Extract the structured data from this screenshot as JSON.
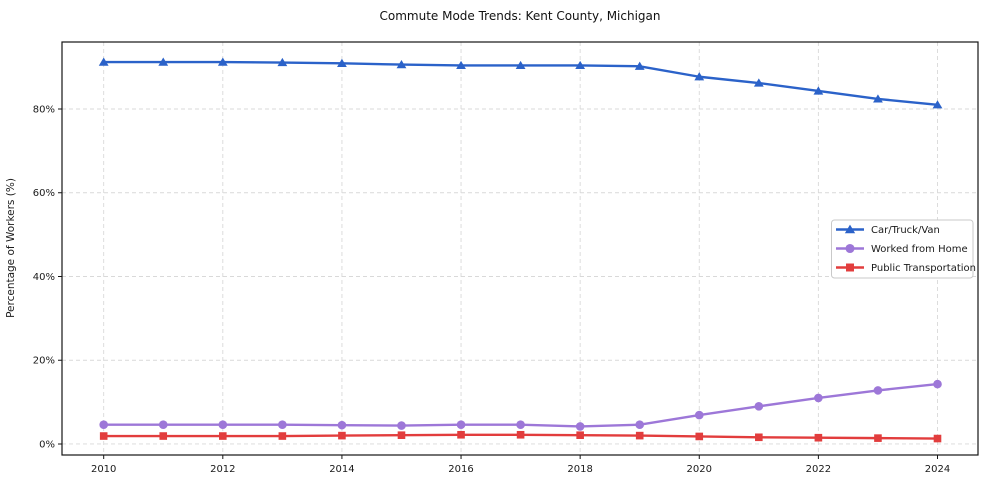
{
  "title": "Commute Mode Trends: Kent County, Michigan",
  "chart_data": {
    "type": "line",
    "title": "Commute Mode Trends: Kent County, Michigan",
    "xlabel": "",
    "ylabel": "Percentage of Workers (%)",
    "x": [
      2010,
      2011,
      2012,
      2013,
      2014,
      2015,
      2016,
      2017,
      2018,
      2019,
      2020,
      2021,
      2022,
      2023,
      2024
    ],
    "series": [
      {
        "name": "Car/Truck/Van",
        "marker": "triangle",
        "color": "#2b62c9",
        "values": [
          91.2,
          91.2,
          91.2,
          91.1,
          90.9,
          90.6,
          90.4,
          90.4,
          90.4,
          90.2,
          87.7,
          86.2,
          84.3,
          82.4,
          81.0
        ]
      },
      {
        "name": "Worked from Home",
        "marker": "circle",
        "color": "#9d77d8",
        "values": [
          4.6,
          4.6,
          4.6,
          4.6,
          4.5,
          4.4,
          4.6,
          4.6,
          4.2,
          4.6,
          6.9,
          9.0,
          11.0,
          12.8,
          14.3
        ]
      },
      {
        "name": "Public Transportation",
        "marker": "square",
        "color": "#e23d3d",
        "values": [
          1.9,
          1.9,
          1.9,
          1.9,
          2.0,
          2.1,
          2.2,
          2.2,
          2.1,
          2.0,
          1.8,
          1.6,
          1.5,
          1.4,
          1.3
        ]
      }
    ],
    "xticks": [
      2010,
      2012,
      2014,
      2016,
      2018,
      2020,
      2022,
      2024
    ],
    "yticks": [
      0,
      20,
      40,
      60,
      80
    ],
    "ytick_labels": [
      "0%",
      "20%",
      "40%",
      "60%",
      "80%"
    ],
    "xlim": [
      2009.3,
      2024.68
    ],
    "ylim": [
      -2.63,
      96.0
    ],
    "grid": true,
    "grid_style": "dashed",
    "legend_position": "center-right"
  },
  "colors": {
    "grid": "#d9d9d9",
    "spine": "#141414",
    "text": "#1a1a1a",
    "legend_border": "#c9c9c9",
    "background": "#ffffff"
  }
}
